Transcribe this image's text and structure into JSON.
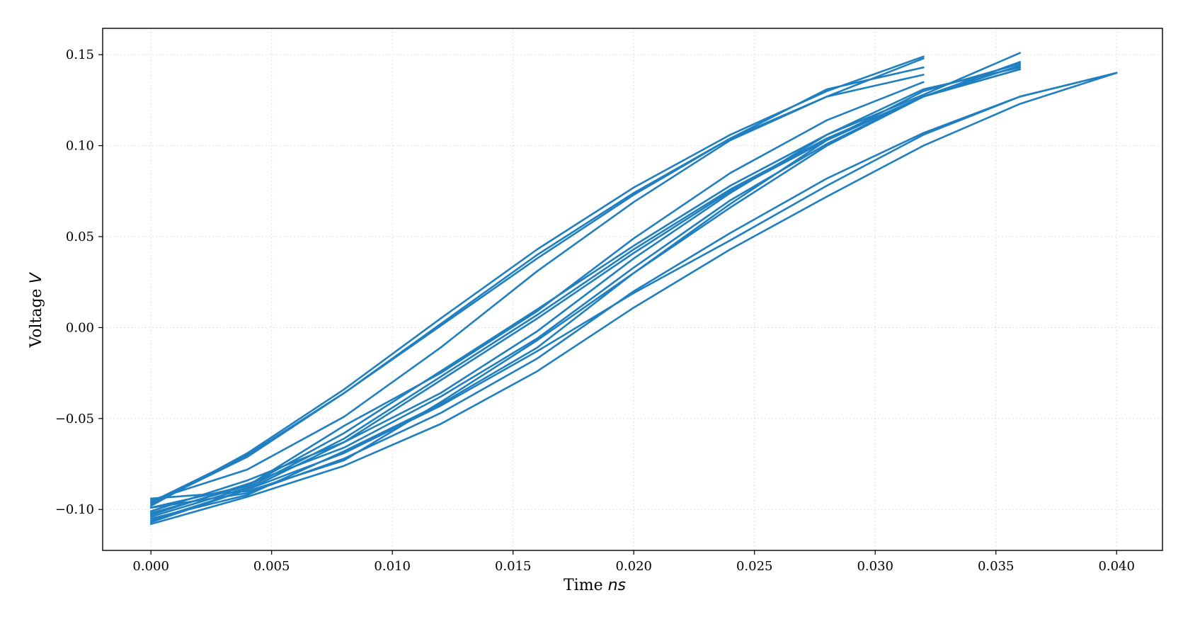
{
  "chart_data": {
    "type": "line",
    "title": "",
    "xlabel": "Time",
    "xlabel_unit": "ns",
    "ylabel": "Voltage",
    "ylabel_unit": "V",
    "xlim": [
      -0.002,
      0.0419
    ],
    "ylim": [
      -0.1225,
      0.1645
    ],
    "xticks": [
      0.0,
      0.005,
      0.01,
      0.015,
      0.02,
      0.025,
      0.03,
      0.035,
      0.04
    ],
    "xtick_labels": [
      "0.000",
      "0.005",
      "0.010",
      "0.015",
      "0.020",
      "0.025",
      "0.030",
      "0.035",
      "0.040"
    ],
    "yticks": [
      -0.1,
      -0.05,
      0.0,
      0.05,
      0.1,
      0.15
    ],
    "ytick_labels": [
      "−0.10",
      "−0.05",
      "0.00",
      "0.05",
      "0.10",
      "0.15"
    ],
    "grid": true,
    "legend": false,
    "line_color": "#1f7fc0",
    "series": [
      {
        "x": [
          0,
          0.004,
          0.008,
          0.012,
          0.016,
          0.02,
          0.024,
          0.028,
          0.032
        ],
        "y": [
          -0.096,
          -0.07,
          -0.036,
          0.002,
          0.04,
          0.074,
          0.104,
          0.127,
          0.148
        ]
      },
      {
        "x": [
          0,
          0.004,
          0.008,
          0.012,
          0.016,
          0.02,
          0.024,
          0.028,
          0.032
        ],
        "y": [
          -0.098,
          -0.069,
          -0.034,
          0.005,
          0.043,
          0.077,
          0.106,
          0.13,
          0.149
        ]
      },
      {
        "x": [
          0,
          0.004,
          0.008,
          0.012,
          0.016,
          0.02,
          0.024,
          0.028,
          0.032
        ],
        "y": [
          -0.097,
          -0.071,
          -0.036,
          0.001,
          0.038,
          0.073,
          0.104,
          0.131,
          0.143
        ]
      },
      {
        "x": [
          0,
          0.004,
          0.008,
          0.012,
          0.016,
          0.02,
          0.024,
          0.028,
          0.032
        ],
        "y": [
          -0.095,
          -0.078,
          -0.049,
          -0.011,
          0.031,
          0.069,
          0.103,
          0.127,
          0.139
        ]
      },
      {
        "x": [
          0,
          0.004,
          0.008,
          0.012,
          0.016,
          0.02,
          0.024,
          0.028,
          0.032
        ],
        "y": [
          -0.099,
          -0.087,
          -0.054,
          -0.025,
          0.009,
          0.049,
          0.085,
          0.114,
          0.135
        ]
      },
      {
        "x": [
          0,
          0.004,
          0.008,
          0.012,
          0.016,
          0.02,
          0.024,
          0.028,
          0.032,
          0.036
        ],
        "y": [
          -0.102,
          -0.087,
          -0.058,
          -0.024,
          0.01,
          0.045,
          0.078,
          0.106,
          0.128,
          0.151
        ]
      },
      {
        "x": [
          0,
          0.004,
          0.008,
          0.012,
          0.016,
          0.02,
          0.024,
          0.028,
          0.032,
          0.036
        ],
        "y": [
          -0.104,
          -0.088,
          -0.061,
          -0.027,
          0.007,
          0.043,
          0.076,
          0.104,
          0.127,
          0.146
        ]
      },
      {
        "x": [
          0,
          0.004,
          0.008,
          0.012,
          0.016,
          0.02,
          0.024,
          0.028,
          0.032,
          0.036
        ],
        "y": [
          -0.106,
          -0.089,
          -0.063,
          -0.029,
          0.005,
          0.041,
          0.075,
          0.103,
          0.127,
          0.144
        ]
      },
      {
        "x": [
          0,
          0.004,
          0.008,
          0.012,
          0.016,
          0.02,
          0.024,
          0.028,
          0.032,
          0.036
        ],
        "y": [
          -0.101,
          -0.084,
          -0.063,
          -0.036,
          -0.002,
          0.038,
          0.074,
          0.106,
          0.131,
          0.143
        ]
      },
      {
        "x": [
          0,
          0.004,
          0.008,
          0.012,
          0.016,
          0.02,
          0.024,
          0.028,
          0.032,
          0.036
        ],
        "y": [
          -0.103,
          -0.086,
          -0.066,
          -0.038,
          -0.006,
          0.033,
          0.07,
          0.101,
          0.127,
          0.142
        ]
      },
      {
        "x": [
          0,
          0.004,
          0.008,
          0.012,
          0.016,
          0.02,
          0.024,
          0.028,
          0.032,
          0.036
        ],
        "y": [
          -0.105,
          -0.092,
          -0.068,
          -0.042,
          -0.011,
          0.03,
          0.068,
          0.103,
          0.13,
          0.145
        ]
      },
      {
        "x": [
          0,
          0.004,
          0.008,
          0.012,
          0.016,
          0.02,
          0.024,
          0.028,
          0.032,
          0.036,
          0.04
        ],
        "y": [
          -0.099,
          -0.091,
          -0.072,
          -0.047,
          -0.017,
          0.02,
          0.052,
          0.082,
          0.107,
          0.127,
          0.14
        ]
      },
      {
        "x": [
          0,
          0.004,
          0.008,
          0.012,
          0.016,
          0.02,
          0.024,
          0.028,
          0.032,
          0.036,
          0.04
        ],
        "y": [
          -0.108,
          -0.093,
          -0.076,
          -0.053,
          -0.024,
          0.011,
          0.043,
          0.072,
          0.1,
          0.123,
          0.14
        ]
      },
      {
        "x": [
          0,
          0.004,
          0.008,
          0.012,
          0.016,
          0.02,
          0.024,
          0.028,
          0.032,
          0.036,
          0.04
        ],
        "y": [
          -0.107,
          -0.089,
          -0.069,
          -0.043,
          -0.013,
          0.019,
          0.048,
          0.078,
          0.106,
          0.127,
          0.14
        ]
      },
      {
        "x": [
          0,
          0.004,
          0.008,
          0.012,
          0.016,
          0.02,
          0.024,
          0.028,
          0.032,
          0.036
        ],
        "y": [
          -0.094,
          -0.09,
          -0.073,
          -0.041,
          -0.007,
          0.03,
          0.066,
          0.1,
          0.127,
          0.142
        ]
      }
    ]
  }
}
